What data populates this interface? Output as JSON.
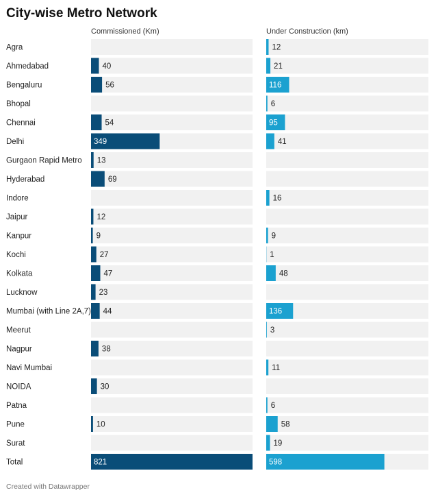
{
  "chart_data": {
    "type": "split-bar",
    "title": "City-wise Metro Network",
    "source": "Created with Datawrapper",
    "categories": [
      "Agra",
      "Ahmedabad",
      "Bengaluru",
      "Bhopal",
      "Chennai",
      "Delhi",
      "Gurgaon Rapid Metro",
      "Hyderabad",
      "Indore",
      "Jaipur",
      "Kanpur",
      "Kochi",
      "Kolkata",
      "Lucknow",
      "Mumbai (with Line 2A,7)",
      "Meerut",
      "Nagpur",
      "Navi Mumbai",
      "NOIDA",
      "Patna",
      "Pune",
      "Surat",
      "Total"
    ],
    "series": [
      {
        "name": "Commissioned (Km)",
        "color": "#0a4d78",
        "values": [
          null,
          40,
          56,
          null,
          54,
          349,
          13,
          69,
          null,
          12,
          9,
          27,
          47,
          23,
          44,
          null,
          38,
          null,
          30,
          null,
          10,
          null,
          821
        ]
      },
      {
        "name": "Under Construction (km)",
        "color": "#1ba1d0",
        "values": [
          12,
          21,
          116,
          6,
          95,
          41,
          null,
          null,
          16,
          null,
          9,
          1,
          48,
          null,
          136,
          3,
          null,
          11,
          null,
          6,
          58,
          19,
          598
        ]
      }
    ],
    "xlim": [
      0,
      821
    ]
  }
}
